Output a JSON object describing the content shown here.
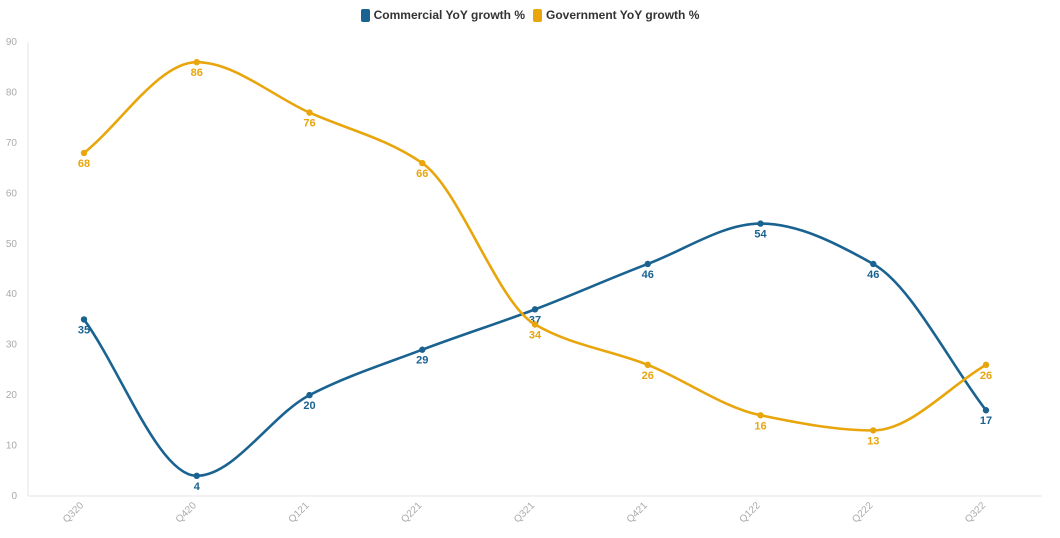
{
  "legend": {
    "commercial": "Commercial YoY growth %",
    "government": "Government YoY growth %"
  },
  "chart_data": {
    "type": "line",
    "categories": [
      "Q320",
      "Q420",
      "Q121",
      "Q221",
      "Q321",
      "Q421",
      "Q122",
      "Q222",
      "Q322"
    ],
    "series": [
      {
        "name": "Commercial YoY growth %",
        "color": "#1a6391",
        "values": [
          35,
          4,
          20,
          29,
          37,
          46,
          54,
          46,
          17
        ]
      },
      {
        "name": "Government YoY growth %",
        "color": "#e8a50c",
        "values": [
          68,
          86,
          76,
          66,
          34,
          26,
          16,
          13,
          26
        ]
      }
    ],
    "ylim": [
      0,
      90
    ],
    "yticks": [
      0,
      10,
      20,
      30,
      40,
      50,
      60,
      70,
      80,
      90
    ],
    "grid": false,
    "legend_position": "top-center",
    "curve": "smooth"
  }
}
